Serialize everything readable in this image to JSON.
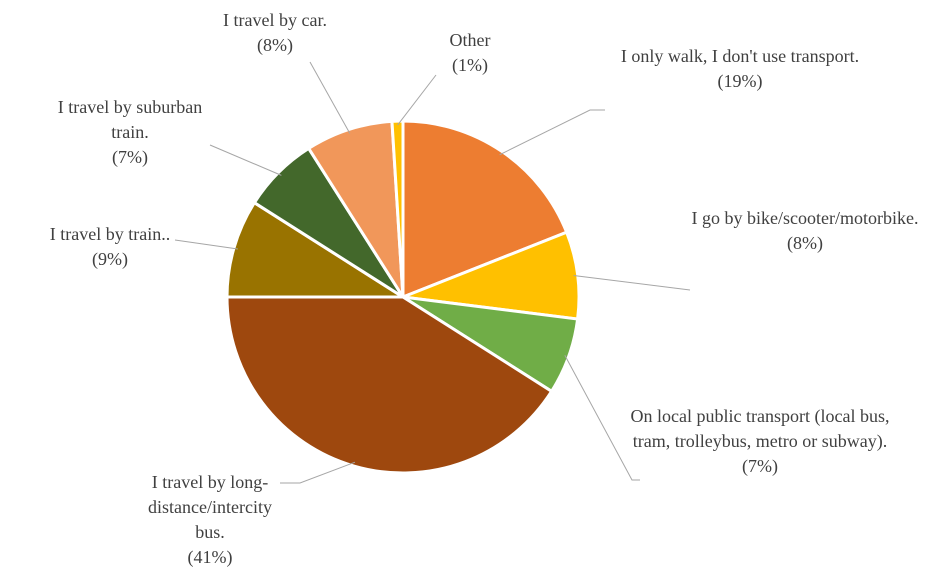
{
  "chart_data": {
    "type": "pie",
    "categories": [
      "I only walk, I don't use transport.",
      "I go by bike/scooter/motorbike.",
      "On local public transport (local bus, tram, trolleybus, metro or subway).",
      "I travel by long-distance/intercity bus.",
      "I travel by train..",
      "I travel by suburban train.",
      "I travel by car.",
      "Other"
    ],
    "values": [
      19,
      8,
      7,
      41,
      9,
      7,
      8,
      1
    ],
    "value_labels": [
      "(19%)",
      "(8%)",
      "(7%)",
      "(41%)",
      "(9%)",
      "(7%)",
      "(8%)",
      "(1%)"
    ],
    "colors": [
      "#ed7d31",
      "#ffc000",
      "#70ad47",
      "#9e480e",
      "#997300",
      "#43682b",
      "#f1975a",
      "#ffc000"
    ]
  }
}
